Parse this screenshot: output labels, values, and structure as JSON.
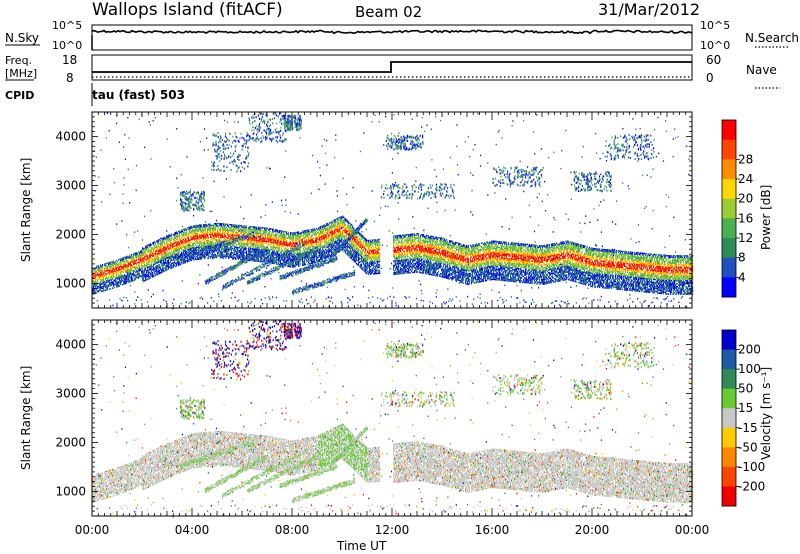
{
  "header": {
    "station": "Wallops Island (fitACF)",
    "beam": "Beam 02",
    "date": "31/Mar/2012"
  },
  "noise_panel": {
    "left_label": "N.Sky",
    "right_label": "N.Search",
    "left_ticks": [
      "10^5",
      "10^0"
    ],
    "right_ticks": [
      "10^5",
      "10^0"
    ]
  },
  "freq_panel": {
    "left_label_1": "Freq.",
    "left_label_2": "[MHz]",
    "left_label_3": "CPID",
    "right_label": "Nave",
    "left_ticks": [
      "18",
      "8"
    ],
    "right_ticks": [
      "60",
      "0"
    ],
    "mode_text": "tau (fast) 503"
  },
  "colors": {
    "power_scale": [
      "#0000ff",
      "#2050c0",
      "#2e8b57",
      "#4caf50",
      "#9acd32",
      "#ffd700",
      "#ff8c00",
      "#ff4500",
      "#ff0000"
    ],
    "velocity_scale": [
      "#0000cc",
      "#1e5aa8",
      "#2e8b57",
      "#66cc33",
      "#c8c8c8",
      "#ffcc00",
      "#ff8800",
      "#ff4400",
      "#ee0000"
    ]
  },
  "chart_data": [
    {
      "type": "heatmap",
      "title": "Power",
      "xlabel": "Time UT",
      "ylabel": "Slant Range [km]",
      "x_ticks": [
        "00:00",
        "04:00",
        "08:00",
        "12:00",
        "16:00",
        "20:00",
        "00:00"
      ],
      "y_ticks": [
        "1000",
        "2000",
        "3000",
        "4000"
      ],
      "ylim": [
        500,
        4500
      ],
      "colorbar_label": "Power [dB]",
      "colorbar_ticks": [
        "4",
        "8",
        "12",
        "16",
        "20",
        "24",
        "28"
      ],
      "colorbar_range": [
        0,
        32
      ],
      "echo_band": {
        "x_hours": [
          0,
          1,
          2,
          3,
          4,
          5,
          6,
          7,
          8,
          9,
          10,
          11,
          12,
          13,
          14,
          15,
          16,
          17,
          18,
          19,
          20,
          21,
          22,
          23,
          24
        ],
        "range_km": [
          1150,
          1300,
          1500,
          1750,
          1950,
          2000,
          1950,
          1900,
          1800,
          1900,
          2150,
          1650,
          1700,
          1750,
          1650,
          1500,
          1600,
          1550,
          1500,
          1600,
          1450,
          1400,
          1350,
          1300,
          1300
        ]
      }
    },
    {
      "type": "heatmap",
      "title": "Velocity",
      "xlabel": "Time UT",
      "ylabel": "Slant Range [km]",
      "x_ticks": [
        "00:00",
        "04:00",
        "08:00",
        "12:00",
        "16:00",
        "20:00",
        "00:00"
      ],
      "y_ticks": [
        "1000",
        "2000",
        "3000",
        "4000"
      ],
      "ylim": [
        500,
        4500
      ],
      "colorbar_label": "Velocity [m s⁻¹]",
      "colorbar_ticks": [
        "200",
        "100",
        "50",
        "15",
        "-15",
        "-50",
        "-100",
        "-200"
      ]
    }
  ],
  "xaxis_title": "Time UT"
}
